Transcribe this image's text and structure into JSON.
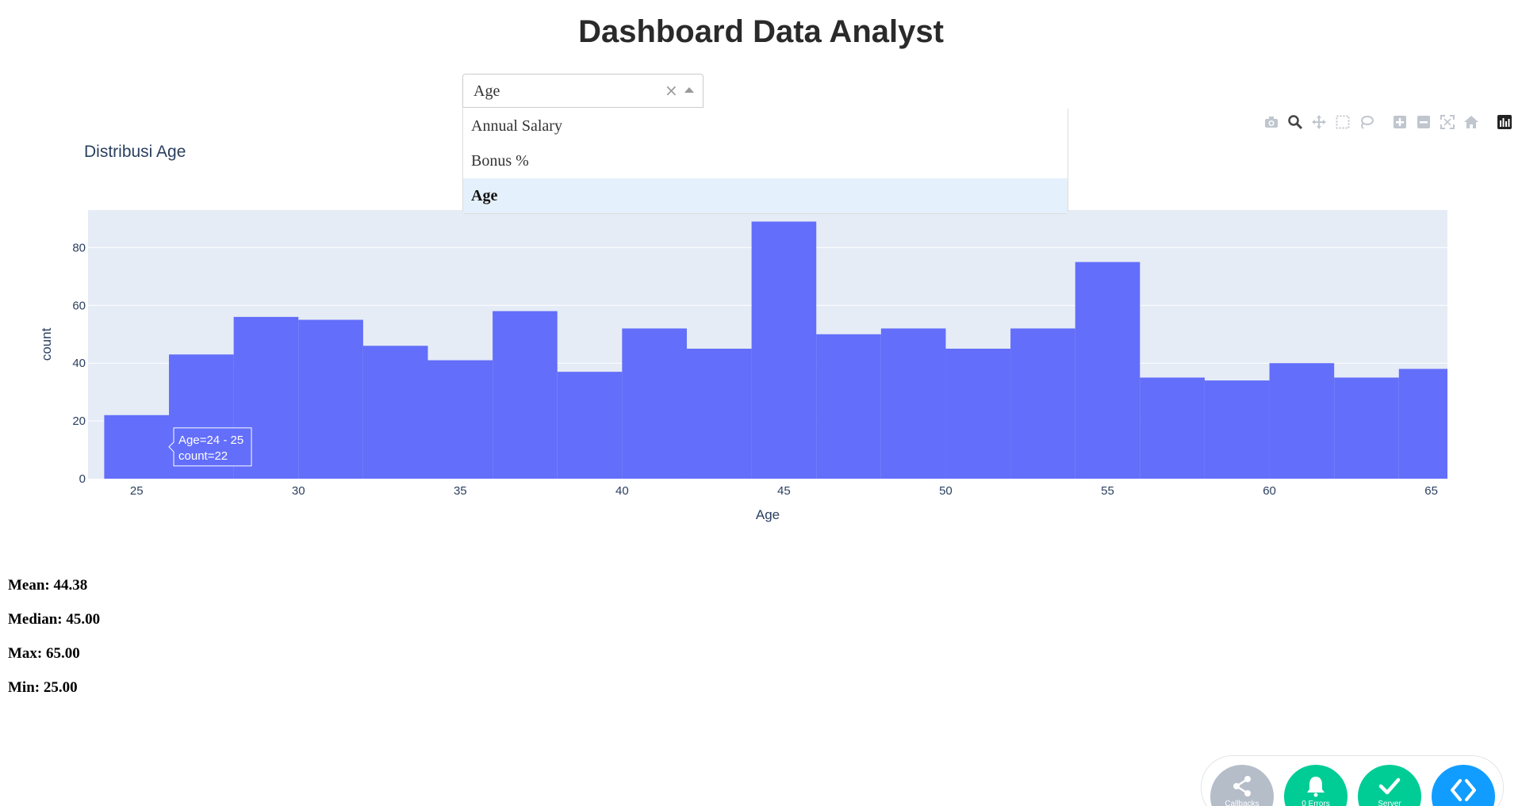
{
  "header": {
    "title": "Dashboard Data Analyst"
  },
  "dropdown": {
    "selected": "Age",
    "clear_symbol": "×",
    "options": [
      "Annual Salary",
      "Bonus %",
      "Age"
    ],
    "highlighted_index": 2
  },
  "modebar": {
    "icons": [
      "camera-icon",
      "zoom-icon",
      "pan-icon",
      "box-select-icon",
      "lasso-icon",
      "zoom-in-icon",
      "zoom-out-icon",
      "autoscale-icon",
      "reset-axes-icon",
      "plotly-logo-icon"
    ]
  },
  "chart": {
    "title": "Distribusi Age"
  },
  "chart_data": {
    "type": "bar",
    "xlabel": "Age",
    "ylabel": "count",
    "x_bin_edges": [
      24,
      26,
      28,
      30,
      32,
      34,
      36,
      38,
      40,
      42,
      44,
      46,
      48,
      50,
      52,
      54,
      56,
      58,
      60,
      62,
      64,
      66
    ],
    "values": [
      22,
      43,
      56,
      55,
      46,
      41,
      58,
      37,
      52,
      45,
      89,
      50,
      52,
      45,
      52,
      75,
      35,
      34,
      40,
      35,
      38
    ],
    "xlim": [
      23.5,
      65.5
    ],
    "ylim": [
      0,
      93
    ],
    "x_ticks": [
      25,
      30,
      35,
      40,
      45,
      50,
      55,
      60,
      65
    ],
    "y_ticks": [
      0,
      20,
      40,
      60,
      80
    ],
    "bar_color": "#636efa",
    "plot_bg": "#e5ecf6",
    "grid": true,
    "hover": {
      "line1": "Age=24 - 25",
      "line2": "count=22"
    }
  },
  "stats": {
    "mean": "Mean: 44.38",
    "median": "Median: 45.00",
    "max": "Max: 65.00",
    "min": "Min: 25.00"
  },
  "devtools": {
    "callbacks": "Callbacks",
    "errors": "0 Errors",
    "server": "Server",
    "colors": {
      "callbacks": "#b5bdc9",
      "errors": "#00cc96",
      "server": "#00cc96",
      "code": "#119dff"
    }
  }
}
